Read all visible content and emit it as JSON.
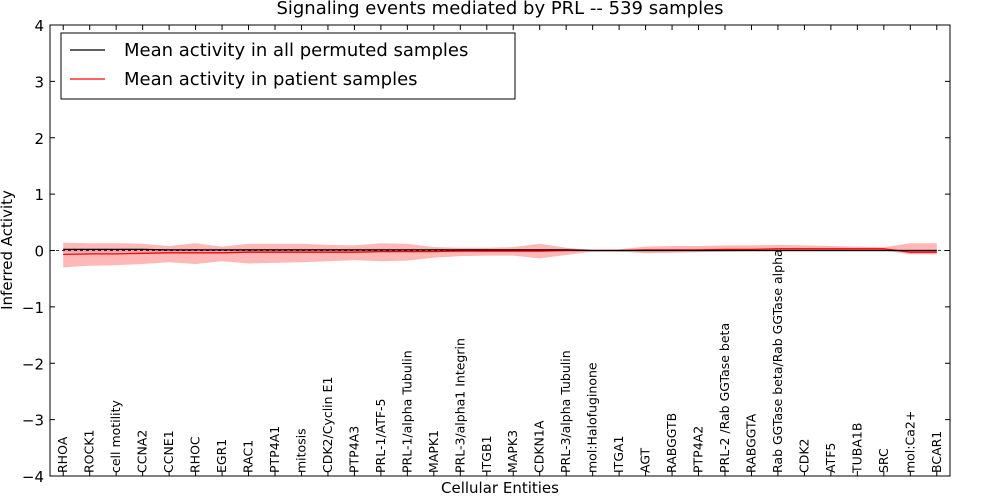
{
  "chart_data": {
    "type": "line",
    "title": "Signaling events mediated by PRL -- 539 samples",
    "xlabel": "Cellular Entities",
    "ylabel": "Inferred Activity",
    "ylim": [
      -4,
      4
    ],
    "yticks": [
      -4,
      -3,
      -2,
      -1,
      0,
      1,
      2,
      3,
      4
    ],
    "ytick_labels": [
      "−4",
      "−3",
      "−2",
      "−1",
      "0",
      "1",
      "2",
      "3",
      "4"
    ],
    "legend_position": "top-left",
    "categories": [
      "RHOA",
      "ROCK1",
      "cell motility",
      "CCNA2",
      "CCNE1",
      "RHOC",
      "EGR1",
      "RAC1",
      "PTP4A1",
      "mitosis",
      "CDK2/Cyclin E1",
      "PTP4A3",
      "PRL-1/ATF-5",
      "PRL-1/alpha Tubulin",
      "MAPK1",
      "PRL-3/alpha1 Integrin",
      "ITGB1",
      "MAPK3",
      "CDKN1A",
      "PRL-3/alpha Tubulin",
      "mol:Halofuginone",
      "ITGA1",
      "AGT",
      "RABGGTB",
      "PTP4A2",
      "PRL-2 /Rab GGTase beta",
      "RABGGTA",
      "Rab GGTase beta/Rab GGTase alpha",
      "CDK2",
      "ATF5",
      "TUBA1B",
      "SRC",
      "mol:Ca2+",
      "BCAR1"
    ],
    "series": [
      {
        "name": "Mean activity in all permuted samples",
        "color": "#000000",
        "values": [
          0.02,
          0.02,
          0.02,
          0.02,
          0.01,
          0.01,
          0.01,
          0.01,
          0.01,
          0.01,
          0.01,
          0.01,
          0.01,
          0.01,
          0.01,
          0.01,
          0.01,
          0.01,
          0.01,
          0.01,
          0.0,
          0.0,
          0.0,
          0.0,
          0.0,
          0.0,
          0.0,
          0.0,
          0.0,
          0.0,
          0.0,
          0.0,
          0.0,
          0.0
        ],
        "band_upper": [
          0.03,
          0.03,
          0.03,
          0.03,
          0.03,
          0.03,
          0.03,
          0.03,
          0.03,
          0.03,
          0.03,
          0.03,
          0.03,
          0.03,
          0.03,
          0.03,
          0.03,
          0.03,
          0.03,
          0.03,
          0.02,
          0.02,
          0.02,
          0.02,
          0.02,
          0.02,
          0.02,
          0.02,
          0.02,
          0.02,
          0.02,
          0.02,
          0.02,
          0.02
        ],
        "band_lower": [
          -0.03,
          -0.03,
          -0.03,
          -0.03,
          -0.03,
          -0.03,
          -0.03,
          -0.03,
          -0.03,
          -0.03,
          -0.03,
          -0.03,
          -0.03,
          -0.03,
          -0.03,
          -0.03,
          -0.03,
          -0.03,
          -0.03,
          -0.03,
          -0.02,
          -0.02,
          -0.02,
          -0.02,
          -0.02,
          -0.02,
          -0.02,
          -0.02,
          -0.02,
          -0.02,
          -0.02,
          -0.02,
          -0.02,
          -0.02
        ]
      },
      {
        "name": "Mean activity in patient samples",
        "color": "#ff0000",
        "values": [
          -0.07,
          -0.06,
          -0.06,
          -0.05,
          -0.04,
          -0.04,
          -0.04,
          -0.03,
          -0.03,
          -0.03,
          -0.03,
          -0.03,
          -0.02,
          -0.02,
          -0.02,
          -0.01,
          -0.01,
          -0.01,
          -0.01,
          0.0,
          0.0,
          0.0,
          0.01,
          0.01,
          0.01,
          0.02,
          0.02,
          0.03,
          0.03,
          0.03,
          0.03,
          0.03,
          -0.03,
          -0.03
        ],
        "band_upper": [
          0.14,
          0.13,
          0.13,
          0.12,
          0.08,
          0.13,
          0.07,
          0.12,
          0.12,
          0.12,
          0.1,
          0.09,
          0.13,
          0.12,
          0.06,
          0.05,
          0.05,
          0.06,
          0.12,
          0.05,
          0.01,
          0.02,
          0.07,
          0.08,
          0.08,
          0.09,
          0.09,
          0.1,
          0.09,
          0.08,
          0.07,
          0.06,
          0.13,
          0.13
        ],
        "band_lower": [
          -0.3,
          -0.27,
          -0.26,
          -0.24,
          -0.21,
          -0.24,
          -0.19,
          -0.23,
          -0.22,
          -0.21,
          -0.19,
          -0.17,
          -0.19,
          -0.18,
          -0.13,
          -0.1,
          -0.09,
          -0.09,
          -0.14,
          -0.08,
          -0.02,
          -0.02,
          -0.05,
          -0.04,
          -0.03,
          -0.02,
          -0.01,
          0.0,
          0.0,
          0.0,
          0.0,
          0.0,
          -0.07,
          -0.07
        ]
      }
    ]
  }
}
